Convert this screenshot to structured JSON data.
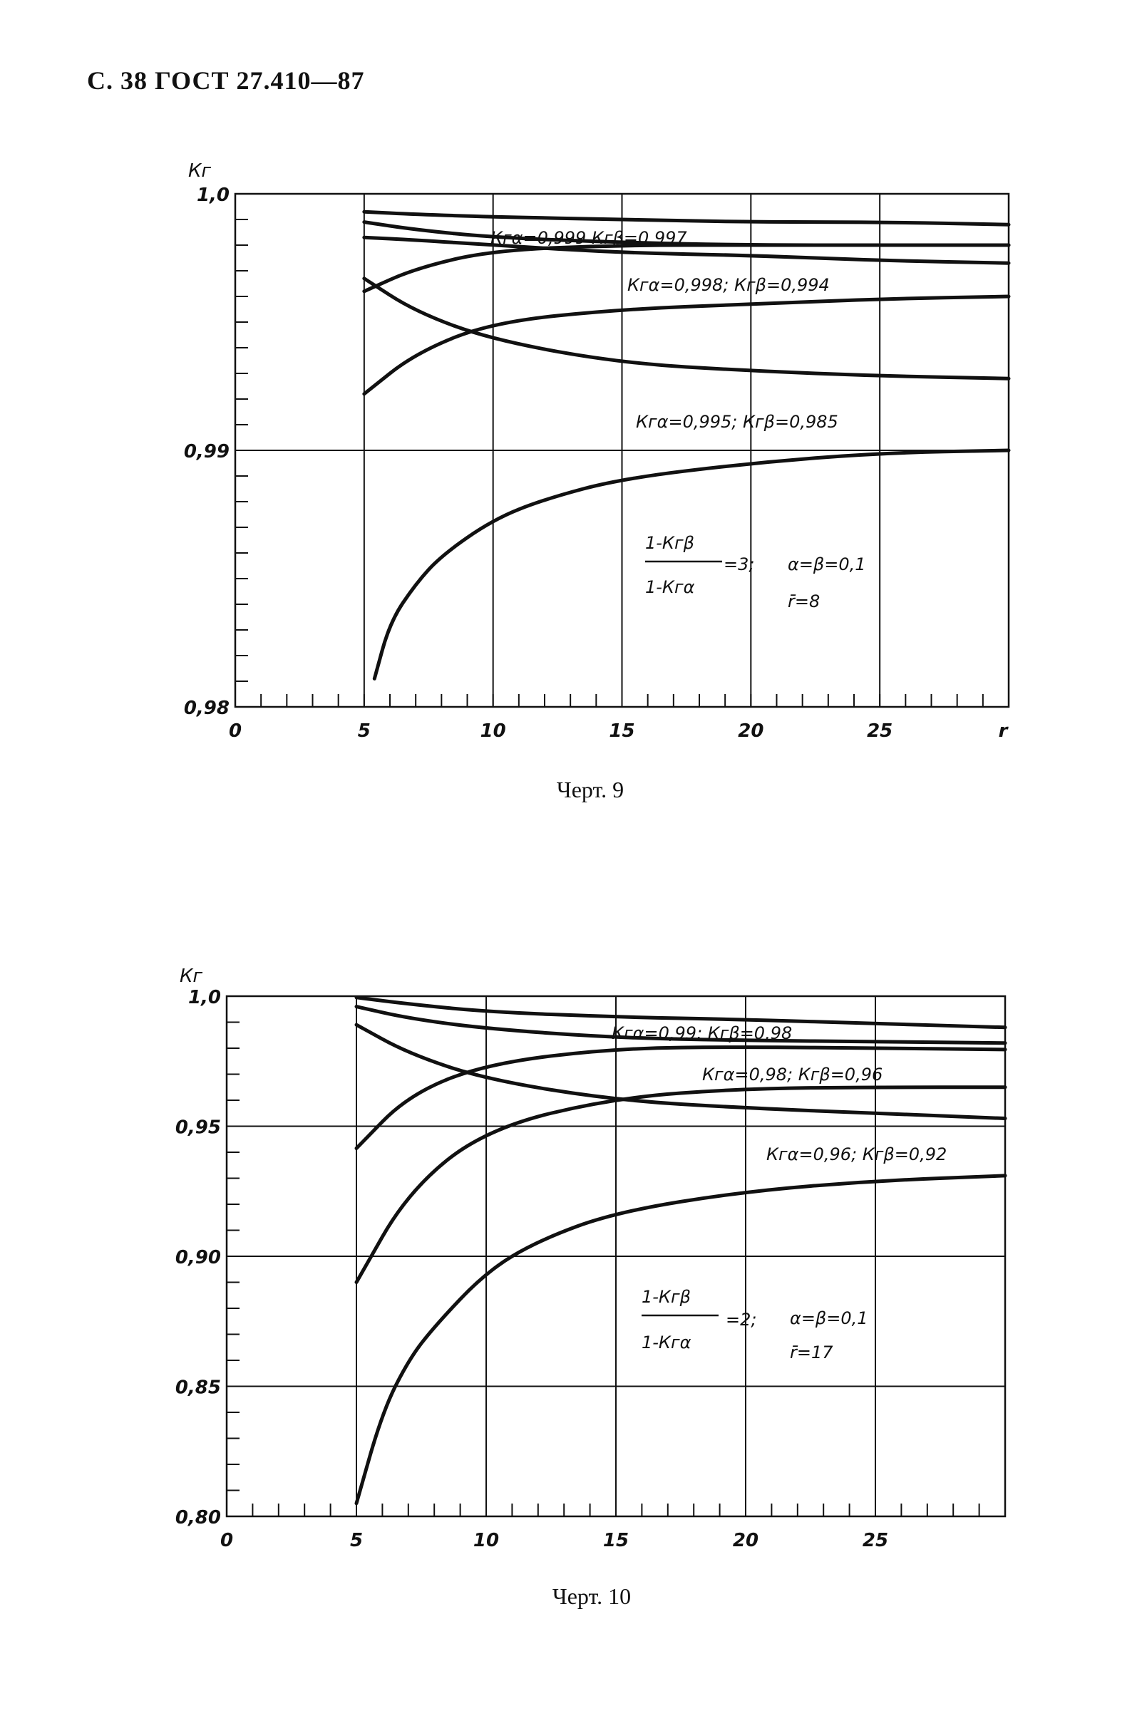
{
  "header": "С. 38 ГОСТ 27.410—87",
  "chart_data": [
    {
      "type": "line",
      "caption": "Черт. 9",
      "ylabel": "Кг",
      "xlabel": "r",
      "xlim": [
        0,
        30
      ],
      "ylim": [
        0.98,
        1.0
      ],
      "x_ticks": [
        "0",
        "5",
        "10",
        "15",
        "20",
        "25"
      ],
      "y_ticks": [
        {
          "value": 1.0,
          "label": "1,0"
        },
        {
          "value": 0.99,
          "label": "0,99"
        },
        {
          "value": 0.98,
          "label": "0,98"
        }
      ],
      "grid_x": [
        5,
        10,
        15,
        20,
        25
      ],
      "grid_y": [
        0.99
      ],
      "series": [
        {
          "x": [
            5,
            7,
            10,
            15,
            20,
            25,
            30
          ],
          "values": [
            0.9993,
            0.9992,
            0.9991,
            0.999,
            0.9989,
            0.9989,
            0.9988
          ]
        },
        {
          "x": [
            5,
            7,
            10,
            15,
            20,
            25,
            30
          ],
          "values": [
            0.9989,
            0.9986,
            0.9983,
            0.9981,
            0.998,
            0.998,
            0.998
          ]
        },
        {
          "x": [
            5,
            7,
            10,
            15,
            20,
            25,
            30
          ],
          "values": [
            0.9962,
            0.9971,
            0.9978,
            0.998,
            0.998,
            0.998,
            0.998
          ]
        },
        {
          "x": [
            5,
            7,
            10,
            15,
            20,
            25,
            30
          ],
          "values": [
            0.9967,
            0.9954,
            0.9943,
            0.9934,
            0.9931,
            0.9929,
            0.9928
          ]
        },
        {
          "x": [
            5,
            7,
            10,
            15,
            20,
            25,
            30
          ],
          "values": [
            0.9983,
            0.9982,
            0.998,
            0.9977,
            0.9976,
            0.9974,
            0.9973
          ]
        },
        {
          "x": [
            5,
            7,
            10,
            15,
            20,
            25,
            30
          ],
          "values": [
            0.9922,
            0.9938,
            0.995,
            0.9955,
            0.9957,
            0.9959,
            0.996
          ]
        },
        {
          "x": [
            5.4,
            6,
            7,
            8,
            10,
            12,
            15,
            20,
            25,
            30
          ],
          "values": [
            0.9811,
            0.9833,
            0.9848,
            0.9859,
            0.9873,
            0.9881,
            0.9889,
            0.9895,
            0.9899,
            0.99
          ]
        }
      ],
      "annotations": [
        "Кгα=0,999  Кгβ=0,997",
        "Кгα=0,998; Кгβ=0,994",
        "Кгα=0,995; Кгβ=0,985",
        "1-Кгβ",
        "1-Кгα",
        "=3;",
        "α=β=0,1",
        "r̄=8"
      ]
    },
    {
      "type": "line",
      "caption": "Черт. 10",
      "ylabel": "Кг",
      "xlim": [
        0,
        30
      ],
      "ylim": [
        0.8,
        1.0
      ],
      "x_ticks": [
        "0",
        "5",
        "10",
        "15",
        "20",
        "25"
      ],
      "y_ticks": [
        {
          "value": 1.0,
          "label": "1,0"
        },
        {
          "value": 0.95,
          "label": "0,95"
        },
        {
          "value": 0.9,
          "label": "0,90"
        },
        {
          "value": 0.85,
          "label": "0,85"
        },
        {
          "value": 0.8,
          "label": "0,80"
        }
      ],
      "grid_x": [
        5,
        10,
        15,
        20,
        25
      ],
      "grid_y": [
        0.95,
        0.9,
        0.85
      ],
      "series": [
        {
          "x": [
            5,
            7,
            10,
            15,
            20,
            25,
            30
          ],
          "values": [
            0.9995,
            0.997,
            0.994,
            0.992,
            0.991,
            0.9895,
            0.988
          ]
        },
        {
          "x": [
            5,
            7,
            10,
            15,
            20,
            25,
            30
          ],
          "values": [
            0.996,
            0.9915,
            0.9875,
            0.984,
            0.983,
            0.9825,
            0.982
          ]
        },
        {
          "x": [
            5,
            7,
            10,
            15,
            20,
            25,
            30
          ],
          "values": [
            0.9415,
            0.962,
            0.974,
            0.98,
            0.9805,
            0.98,
            0.9795
          ]
        },
        {
          "x": [
            5,
            7,
            10,
            15,
            20,
            25,
            30
          ],
          "values": [
            0.989,
            0.978,
            0.968,
            0.96,
            0.957,
            0.955,
            0.953
          ]
        },
        {
          "x": [
            5,
            7,
            10,
            15,
            20,
            25,
            30
          ],
          "values": [
            0.89,
            0.925,
            0.949,
            0.961,
            0.9645,
            0.965,
            0.965
          ]
        },
        {
          "x": [
            5,
            6,
            7,
            8,
            10,
            12,
            15,
            20,
            25,
            30
          ],
          "values": [
            0.805,
            0.84,
            0.86,
            0.873,
            0.894,
            0.906,
            0.917,
            0.925,
            0.929,
            0.931
          ]
        }
      ],
      "annotations": [
        "Кгα=0,99; Кгβ=0,98",
        "Кгα=0,98; Кгβ=0,96",
        "Кгα=0,96; Кгβ=0,92",
        "1-Кгβ",
        "1-Кгα",
        "=2;",
        "α=β=0,1",
        "r̄=17"
      ]
    }
  ]
}
